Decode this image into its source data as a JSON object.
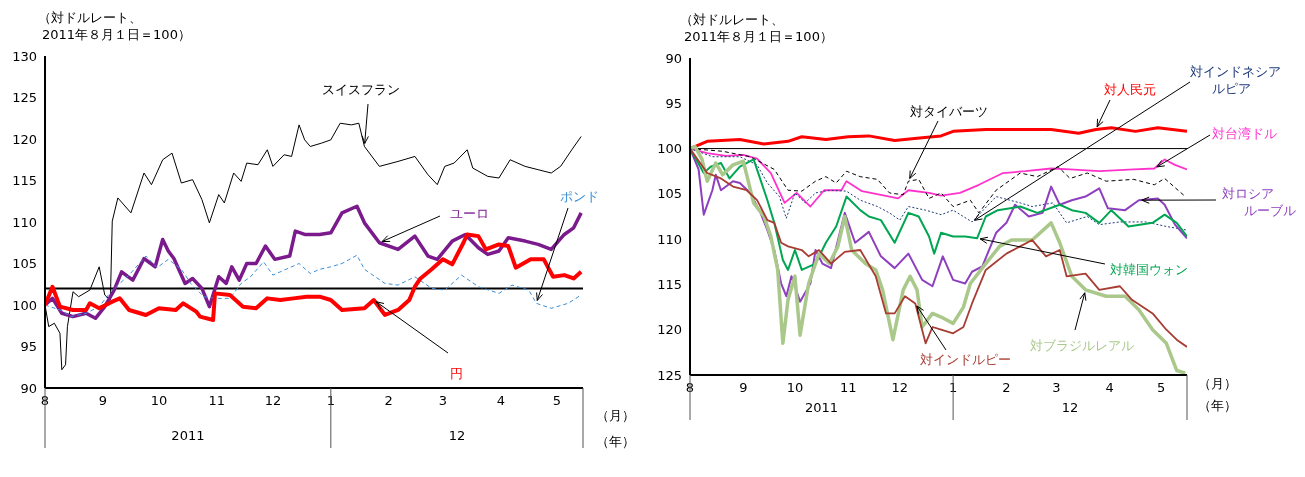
{
  "chart_data": [
    {
      "type": "line",
      "ylabel": "（対ドルレート、\n2011年８月１日＝100）",
      "xlabel": "（月）",
      "annotations": [
        "2011",
        "12",
        "（年）"
      ],
      "marker": "none",
      "grid": false,
      "xlim": [
        "2011-08-01",
        "2012-05-15"
      ],
      "xticks": [
        {
          "value": "2011-08-01",
          "label": "8"
        },
        {
          "value": "2011-09-01",
          "label": "9"
        },
        {
          "value": "2011-10-01",
          "label": "10"
        },
        {
          "value": "2011-11-01",
          "label": "11"
        },
        {
          "value": "2011-12-01",
          "label": "12"
        },
        {
          "value": "2012-01-01",
          "label": "1"
        },
        {
          "value": "2012-02-01",
          "label": "2"
        },
        {
          "value": "2012-03-01",
          "label": "3"
        },
        {
          "value": "2012-04-01",
          "label": "4"
        },
        {
          "value": "2012-05-01",
          "label": "5"
        }
      ],
      "ylim": [
        90,
        130
      ],
      "yticks": [
        90,
        95,
        100,
        105,
        110,
        115,
        120,
        125,
        130
      ],
      "ref_lines": [
        {
          "axis": "y",
          "value": 102,
          "color": "#000000"
        }
      ],
      "series": [
        {
          "name": "スイスフラン",
          "color": "#000000",
          "x": [
            "2011-08-01",
            "2011-08-03",
            "2011-08-06",
            "2011-08-09",
            "2011-08-10",
            "2011-08-12",
            "2011-08-13",
            "2011-08-16",
            "2011-08-19",
            "2011-08-25",
            "2011-08-30",
            "2011-09-02",
            "2011-09-05",
            "2011-09-06",
            "2011-09-09",
            "2011-09-16",
            "2011-09-23",
            "2011-09-27",
            "2011-10-03",
            "2011-10-08",
            "2011-10-13",
            "2011-10-19",
            "2011-10-24",
            "2011-10-28",
            "2011-11-02",
            "2011-11-05",
            "2011-11-10",
            "2011-11-14",
            "2011-11-17",
            "2011-11-23",
            "2011-11-28",
            "2011-12-01",
            "2011-12-07",
            "2011-12-11",
            "2011-12-15",
            "2011-12-18",
            "2011-12-21",
            "2011-12-27",
            "2012-01-01",
            "2012-01-06",
            "2012-01-12",
            "2012-01-16",
            "2012-01-19",
            "2012-01-27",
            "2012-02-06",
            "2012-02-15",
            "2012-02-22",
            "2012-02-27",
            "2012-03-02",
            "2012-03-07",
            "2012-03-14",
            "2012-03-17",
            "2012-03-25",
            "2012-03-31",
            "2012-04-06",
            "2012-04-14",
            "2012-04-21",
            "2012-04-28",
            "2012-05-03",
            "2012-05-09",
            "2012-05-14"
          ],
          "values": [
            100,
            97.4,
            97.8,
            96.6,
            92.2,
            92.8,
            97.4,
            101.6,
            101,
            101.8,
            104.6,
            101.2,
            100.6,
            110.1,
            112.9,
            111.1,
            115.9,
            114.5,
            117.5,
            118.3,
            114.7,
            115.1,
            112.7,
            109.9,
            113.3,
            112.3,
            115.9,
            114.9,
            117.1,
            116.9,
            118.7,
            116.7,
            118.1,
            117.9,
            121.7,
            119.9,
            119.1,
            119.5,
            119.9,
            121.9,
            121.7,
            121.9,
            119.1,
            116.7,
            117.3,
            117.9,
            115.7,
            114.5,
            116.7,
            117.1,
            118.7,
            116.5,
            115.5,
            115.3,
            117.5,
            116.7,
            116.3,
            115.9,
            116.7,
            118.7,
            120.3
          ]
        },
        {
          "name": "ユーロ",
          "color": "#7b1a8c",
          "x": [
            "2011-08-01",
            "2011-08-05",
            "2011-08-10",
            "2011-08-16",
            "2011-08-23",
            "2011-08-28",
            "2011-09-02",
            "2011-09-07",
            "2011-09-11",
            "2011-09-17",
            "2011-09-23",
            "2011-09-29",
            "2011-10-03",
            "2011-10-06",
            "2011-10-09",
            "2011-10-15",
            "2011-10-19",
            "2011-10-24",
            "2011-10-28",
            "2011-11-02",
            "2011-11-06",
            "2011-11-09",
            "2011-11-13",
            "2011-11-17",
            "2011-11-22",
            "2011-11-27",
            "2011-12-02",
            "2011-12-10",
            "2011-12-13",
            "2011-12-18",
            "2011-12-26",
            "2012-01-01",
            "2012-01-07",
            "2012-01-15",
            "2012-01-19",
            "2012-01-27",
            "2012-02-06",
            "2012-02-15",
            "2012-02-22",
            "2012-02-27",
            "2012-03-06",
            "2012-03-13",
            "2012-03-20",
            "2012-03-25",
            "2012-03-31",
            "2012-04-05",
            "2012-04-14",
            "2012-04-21",
            "2012-04-28",
            "2012-05-05",
            "2012-05-10",
            "2012-05-14"
          ],
          "values": [
            100,
            100.8,
            99,
            98.6,
            99,
            98.4,
            99.8,
            101.8,
            104,
            103,
            105.6,
            104.6,
            107.9,
            106.5,
            105.6,
            102.6,
            103.2,
            102,
            99.8,
            103.4,
            102.6,
            104.6,
            103,
            105,
            105,
            107.1,
            105.5,
            105.9,
            108.9,
            108.5,
            108.5,
            108.7,
            111.1,
            111.9,
            109.9,
            107.5,
            106.7,
            108.3,
            105.9,
            105.5,
            107.7,
            108.5,
            106.9,
            106.1,
            106.5,
            108.1,
            107.7,
            107.3,
            106.7,
            108.5,
            109.3,
            111.1
          ]
        },
        {
          "name": "ポンド",
          "color": "#3c8fd6",
          "line_style": "dashed",
          "x": [
            "2011-08-01",
            "2011-08-09",
            "2011-08-15",
            "2011-08-23",
            "2011-08-30",
            "2011-09-06",
            "2011-09-15",
            "2011-09-24",
            "2011-09-30",
            "2011-10-06",
            "2011-10-13",
            "2011-10-18",
            "2011-10-25",
            "2011-11-01",
            "2011-11-08",
            "2011-11-14",
            "2011-11-19",
            "2011-11-26",
            "2011-12-01",
            "2011-12-08",
            "2011-12-15",
            "2011-12-21",
            "2011-12-26",
            "2012-01-01",
            "2012-01-07",
            "2012-01-15",
            "2012-01-19",
            "2012-01-30",
            "2012-02-06",
            "2012-02-15",
            "2012-02-24",
            "2012-03-02",
            "2012-03-11",
            "2012-03-20",
            "2012-03-31",
            "2012-04-07",
            "2012-04-16",
            "2012-04-20",
            "2012-04-28",
            "2012-05-07",
            "2012-05-14"
          ],
          "values": [
            100,
            99.4,
            98.6,
            99,
            99.8,
            101.8,
            103.6,
            105.9,
            104.5,
            105.5,
            104.3,
            102.6,
            101,
            100.8,
            100.8,
            102.6,
            103.4,
            105.2,
            103.6,
            104.3,
            105,
            103.8,
            104.3,
            104.6,
            105,
            106,
            104.3,
            102.6,
            102.4,
            103.4,
            102,
            101.8,
            103.6,
            102.2,
            101.4,
            102.4,
            101.8,
            100.2,
            99.6,
            100.2,
            101.2
          ]
        },
        {
          "name": "円",
          "color": "#ff0000",
          "x": [
            "2011-08-01",
            "2011-08-05",
            "2011-08-09",
            "2011-08-16",
            "2011-08-23",
            "2011-08-25",
            "2011-08-30",
            "2011-09-06",
            "2011-09-10",
            "2011-09-15",
            "2011-09-24",
            "2011-10-01",
            "2011-10-10",
            "2011-10-14",
            "2011-10-21",
            "2011-10-23",
            "2011-10-30",
            "2011-10-31",
            "2011-11-08",
            "2011-11-15",
            "2011-11-22",
            "2011-11-28",
            "2011-12-05",
            "2011-12-12",
            "2011-12-19",
            "2011-12-26",
            "2012-01-01",
            "2012-01-07",
            "2012-01-19",
            "2012-01-24",
            "2012-01-30",
            "2012-02-06",
            "2012-02-12",
            "2012-02-15",
            "2012-02-18",
            "2012-02-24",
            "2012-03-01",
            "2012-03-06",
            "2012-03-12",
            "2012-03-14",
            "2012-03-20",
            "2012-03-24",
            "2012-03-31",
            "2012-04-05",
            "2012-04-09",
            "2012-04-17",
            "2012-04-24",
            "2012-04-29",
            "2012-05-05",
            "2012-05-10",
            "2012-05-14"
          ],
          "values": [
            100,
            102.2,
            99.8,
            99.4,
            99.4,
            100.2,
            99.6,
            100.4,
            100.8,
            99.4,
            98.8,
            99.6,
            99.4,
            100.2,
            99.2,
            98.6,
            98.2,
            101.4,
            101.2,
            99.8,
            99.6,
            100.8,
            100.6,
            100.8,
            101,
            101,
            100.6,
            99.4,
            99.6,
            100.6,
            98.8,
            99.4,
            100.6,
            102.2,
            103.2,
            104.3,
            105.5,
            104.9,
            107.5,
            108.5,
            108.3,
            106.7,
            107.3,
            107.1,
            104.5,
            105.5,
            105.5,
            103.4,
            103.6,
            103.2,
            104
          ]
        }
      ]
    },
    {
      "type": "line",
      "ylabel": "（対ドルレート、\n2011年８月１日＝100）",
      "xlabel": "（月）",
      "annotations": [
        "2011",
        "12",
        "（年）"
      ],
      "marker": "none",
      "grid": false,
      "xlim": [
        "2011-08-01",
        "2012-05-16"
      ],
      "xticks": [
        {
          "value": "2011-08-01",
          "label": "8"
        },
        {
          "value": "2011-09-01",
          "label": "9"
        },
        {
          "value": "2011-10-01",
          "label": "10"
        },
        {
          "value": "2011-11-01",
          "label": "11"
        },
        {
          "value": "2011-12-01",
          "label": "12"
        },
        {
          "value": "2012-01-01",
          "label": "1"
        },
        {
          "value": "2012-02-01",
          "label": "2"
        },
        {
          "value": "2012-03-01",
          "label": "3"
        },
        {
          "value": "2012-04-01",
          "label": "4"
        },
        {
          "value": "2012-05-01",
          "label": "5"
        }
      ],
      "ylim": [
        125,
        90
      ],
      "yticks": [
        90,
        95,
        100,
        105,
        110,
        115,
        120,
        125
      ],
      "ref_lines": [
        {
          "axis": "y",
          "value": 100,
          "color": "#000000"
        }
      ],
      "series": [
        {
          "name": "対人民元",
          "color": "#ff0000",
          "x": [
            "2011-08-01",
            "2011-08-11",
            "2011-08-30",
            "2011-09-13",
            "2011-09-27",
            "2011-10-05",
            "2011-10-19",
            "2011-11-01",
            "2011-11-13",
            "2011-11-28",
            "2011-12-14",
            "2011-12-25",
            "2012-01-01",
            "2012-01-20",
            "2012-02-08",
            "2012-02-27",
            "2012-03-14",
            "2012-03-24",
            "2012-04-02",
            "2012-04-16",
            "2012-04-29",
            "2012-05-16"
          ],
          "values": [
            100,
            99.2,
            99,
            99.5,
            99.2,
            98.7,
            99,
            98.7,
            98.6,
            99.1,
            98.8,
            98.6,
            98.1,
            97.9,
            97.9,
            97.9,
            98.3,
            97.9,
            97.7,
            98.1,
            97.7,
            98.1
          ]
        },
        {
          "name": "対台湾ドル",
          "color": "#ff33cc",
          "x": [
            "2011-08-01",
            "2011-08-11",
            "2011-08-22",
            "2011-09-01",
            "2011-09-09",
            "2011-09-17",
            "2011-09-25",
            "2011-10-02",
            "2011-10-10",
            "2011-10-18",
            "2011-10-28",
            "2011-10-31",
            "2011-11-09",
            "2011-11-20",
            "2011-11-30",
            "2011-12-06",
            "2011-12-18",
            "2011-12-25",
            "2012-01-05",
            "2012-01-16",
            "2012-01-30",
            "2012-02-12",
            "2012-02-27",
            "2012-03-09",
            "2012-03-26",
            "2012-04-15",
            "2012-04-27",
            "2012-05-03",
            "2012-05-09",
            "2012-05-16"
          ],
          "values": [
            100,
            100.5,
            100.8,
            100.7,
            101.1,
            102.7,
            106,
            104.9,
            106.4,
            104.6,
            104.6,
            103.6,
            104.7,
            105.1,
            105.5,
            104.6,
            104.9,
            105.2,
            104.9,
            104,
            102.7,
            102.5,
            102.2,
            102.3,
            102.5,
            102.3,
            102.2,
            101.2,
            101.8,
            102.3
          ]
        },
        {
          "name": "対タイバーツ",
          "color": "#000000",
          "line_style": "dashed",
          "x": [
            "2011-08-01",
            "2011-08-20",
            "2011-09-05",
            "2011-09-19",
            "2011-09-27",
            "2011-10-05",
            "2011-10-13",
            "2011-10-19",
            "2011-10-25",
            "2011-10-31",
            "2011-11-08",
            "2011-11-18",
            "2011-11-25",
            "2011-12-03",
            "2011-12-06",
            "2011-12-12",
            "2011-12-18",
            "2011-12-25",
            "2012-01-01",
            "2012-01-11",
            "2012-01-16",
            "2012-01-26",
            "2012-02-09",
            "2012-02-19",
            "2012-03-02",
            "2012-03-09",
            "2012-03-19",
            "2012-03-30",
            "2012-04-15",
            "2012-04-27",
            "2012-05-03",
            "2012-05-15"
          ],
          "values": [
            100,
            100.3,
            100.9,
            102.3,
            104.6,
            104.7,
            103.6,
            103.1,
            103.8,
            102.5,
            103.1,
            103.4,
            104.9,
            105.1,
            103.6,
            103.4,
            105.5,
            104.9,
            106.4,
            105.7,
            107.1,
            104.6,
            102.7,
            103.1,
            102,
            103.3,
            102.7,
            103.6,
            103.4,
            104,
            103.3,
            105.3
          ]
        },
        {
          "name": "対インドネシアルピア",
          "color": "#1f3a7a",
          "line_style": "dotted",
          "x": [
            "2011-08-01",
            "2011-08-14",
            "2011-08-30",
            "2011-09-09",
            "2011-09-15",
            "2011-09-22",
            "2011-09-26",
            "2011-10-01",
            "2011-10-07",
            "2011-10-13",
            "2011-10-21",
            "2011-10-31",
            "2011-11-08",
            "2011-11-18",
            "2011-11-25",
            "2011-12-01",
            "2011-12-06",
            "2011-12-16",
            "2011-12-25",
            "2012-01-01",
            "2012-01-12",
            "2012-01-26",
            "2012-02-09",
            "2012-02-16",
            "2012-02-28",
            "2012-03-07",
            "2012-03-19",
            "2012-03-26",
            "2012-04-07",
            "2012-04-22",
            "2012-05-04",
            "2012-05-16"
          ],
          "values": [
            100,
            100.9,
            100.9,
            101.8,
            103.8,
            105.3,
            107.7,
            104.9,
            106,
            104.9,
            104.6,
            104.7,
            105.7,
            106.4,
            107.1,
            107.9,
            106.4,
            106.8,
            107.3,
            106.8,
            108.1,
            105.3,
            106,
            106.4,
            106,
            108.2,
            107.5,
            108.4,
            108.1,
            108.1,
            108.6,
            109
          ]
        },
        {
          "name": "対ロシアルーブル",
          "color": "#8e3fbf",
          "x": [
            "2011-08-01",
            "2011-08-06",
            "2011-08-09",
            "2011-08-14",
            "2011-08-16",
            "2011-08-19",
            "2011-08-26",
            "2011-08-30",
            "2011-09-05",
            "2011-09-11",
            "2011-09-15",
            "2011-09-19",
            "2011-09-23",
            "2011-09-26",
            "2011-09-29",
            "2011-10-04",
            "2011-10-10",
            "2011-10-13",
            "2011-10-17",
            "2011-10-22",
            "2011-10-30",
            "2011-11-05",
            "2011-11-13",
            "2011-11-20",
            "2011-11-28",
            "2011-12-06",
            "2011-12-14",
            "2011-12-20",
            "2011-12-26",
            "2012-01-01",
            "2012-01-08",
            "2012-01-12",
            "2012-01-18",
            "2012-01-26",
            "2012-02-01",
            "2012-02-06",
            "2012-02-14",
            "2012-02-22",
            "2012-02-27",
            "2012-03-03",
            "2012-03-10",
            "2012-03-18",
            "2012-03-26",
            "2012-03-31",
            "2012-04-10",
            "2012-04-18",
            "2012-04-29",
            "2012-05-03",
            "2012-05-09",
            "2012-05-16"
          ],
          "values": [
            100,
            102.3,
            107.3,
            104.6,
            102.9,
            104.6,
            103.6,
            103.8,
            104.9,
            107.1,
            109,
            111.2,
            114.9,
            116.3,
            114.1,
            116.9,
            114.9,
            111.2,
            112.7,
            113.2,
            107.1,
            110.4,
            109.2,
            111.9,
            113.2,
            111.6,
            114.5,
            115.2,
            111.9,
            114.5,
            114.9,
            113.6,
            113,
            109.3,
            108.2,
            106.2,
            107.5,
            107.1,
            104.2,
            106.2,
            105.7,
            105.3,
            104.4,
            106.6,
            106.8,
            105.7,
            105.5,
            106.2,
            108.4,
            109.9
          ]
        },
        {
          "name": "対韓国ウォン",
          "color": "#00a651",
          "x": [
            "2011-08-01",
            "2011-08-09",
            "2011-08-13",
            "2011-08-19",
            "2011-08-24",
            "2011-08-30",
            "2011-09-07",
            "2011-09-15",
            "2011-09-19",
            "2011-09-24",
            "2011-09-27",
            "2011-10-01",
            "2011-10-05",
            "2011-10-13",
            "2011-10-19",
            "2011-10-25",
            "2011-10-31",
            "2011-11-08",
            "2011-11-13",
            "2011-11-20",
            "2011-11-28",
            "2011-12-06",
            "2011-12-12",
            "2011-12-18",
            "2011-12-21",
            "2011-12-25",
            "2012-01-01",
            "2012-01-08",
            "2012-01-15",
            "2012-01-20",
            "2012-01-27",
            "2012-02-09",
            "2012-02-19",
            "2012-03-03",
            "2012-03-10",
            "2012-03-18",
            "2012-03-26",
            "2012-04-02",
            "2012-04-12",
            "2012-04-26",
            "2012-05-03",
            "2012-05-10",
            "2012-05-16"
          ],
          "values": [
            100,
            102.7,
            102,
            101.6,
            103.3,
            102,
            101.2,
            105.7,
            108.2,
            112.3,
            113.4,
            111.2,
            113.4,
            112.7,
            110.4,
            108.6,
            105.3,
            106.8,
            107.5,
            107.9,
            110.4,
            107.1,
            107.5,
            109.7,
            111.6,
            109.3,
            109.7,
            109.7,
            109.9,
            107.5,
            106.8,
            106.4,
            107.1,
            106.2,
            106.8,
            107.1,
            108.2,
            106.8,
            108.6,
            108.2,
            107.3,
            108.2,
            109.7
          ]
        },
        {
          "name": "対ブラジルレアル",
          "color": "#a9c88a",
          "x": [
            "2011-08-01",
            "2011-08-04",
            "2011-08-08",
            "2011-08-11",
            "2011-08-16",
            "2011-08-20",
            "2011-08-26",
            "2011-09-01",
            "2011-09-07",
            "2011-09-13",
            "2011-09-17",
            "2011-09-21",
            "2011-09-24",
            "2011-09-27",
            "2011-10-01",
            "2011-10-04",
            "2011-10-09",
            "2011-10-15",
            "2011-10-21",
            "2011-10-26",
            "2011-10-30",
            "2011-11-03",
            "2011-11-11",
            "2011-11-17",
            "2011-11-21",
            "2011-11-27",
            "2011-12-03",
            "2011-12-07",
            "2011-12-11",
            "2011-12-14",
            "2011-12-20",
            "2011-12-25",
            "2012-01-01",
            "2012-01-07",
            "2012-01-11",
            "2012-01-20",
            "2012-01-28",
            "2012-02-04",
            "2012-02-16",
            "2012-02-27",
            "2012-03-03",
            "2012-03-10",
            "2012-03-18",
            "2012-03-30",
            "2012-04-10",
            "2012-04-18",
            "2012-04-26",
            "2012-05-04",
            "2012-05-10",
            "2012-05-15"
          ],
          "values": [
            100,
            99.8,
            101.2,
            103.6,
            101.6,
            102.9,
            101.8,
            101.4,
            106,
            107.5,
            109.7,
            113.4,
            121.5,
            116.7,
            114.1,
            120.6,
            114.9,
            111.6,
            112.7,
            110.8,
            107.5,
            111.2,
            112.7,
            113.4,
            115.6,
            121.1,
            115.6,
            114.1,
            115.6,
            119.7,
            118.2,
            118.6,
            119.3,
            117.5,
            114.9,
            112.7,
            110.8,
            110.1,
            110.1,
            108.2,
            110.4,
            114.1,
            115.6,
            116.3,
            116.3,
            117.8,
            120,
            121.5,
            124.5,
            124.8
          ]
        },
        {
          "name": "対インドルピー",
          "color": "#a83c32",
          "x": [
            "2011-08-01",
            "2011-08-11",
            "2011-08-19",
            "2011-08-26",
            "2011-09-03",
            "2011-09-09",
            "2011-09-15",
            "2011-09-19",
            "2011-09-23",
            "2011-09-27",
            "2011-10-05",
            "2011-10-09",
            "2011-10-15",
            "2011-10-22",
            "2011-10-30",
            "2011-11-08",
            "2011-11-17",
            "2011-11-23",
            "2011-11-28",
            "2011-12-04",
            "2011-12-10",
            "2011-12-16",
            "2011-12-20",
            "2011-12-25",
            "2012-01-01",
            "2012-01-07",
            "2012-01-12",
            "2012-01-20",
            "2012-02-01",
            "2012-02-09",
            "2012-02-16",
            "2012-02-24",
            "2012-03-03",
            "2012-03-07",
            "2012-03-18",
            "2012-03-26",
            "2012-04-07",
            "2012-04-14",
            "2012-04-26",
            "2012-05-04",
            "2012-05-10",
            "2012-05-16"
          ],
          "values": [
            100,
            102.7,
            103.3,
            104.2,
            104.6,
            105.7,
            107.9,
            108.2,
            110.4,
            110.8,
            111.2,
            111.9,
            111.2,
            112.7,
            111.4,
            111.2,
            114.1,
            118.2,
            118.2,
            116.3,
            117.1,
            121.5,
            119.7,
            120,
            120.4,
            119.7,
            117.1,
            113.4,
            111.6,
            110.8,
            110.1,
            111.9,
            111.2,
            114.1,
            113.8,
            115.6,
            115.2,
            116.7,
            118.2,
            120,
            121.1,
            121.9
          ]
        }
      ]
    }
  ]
}
